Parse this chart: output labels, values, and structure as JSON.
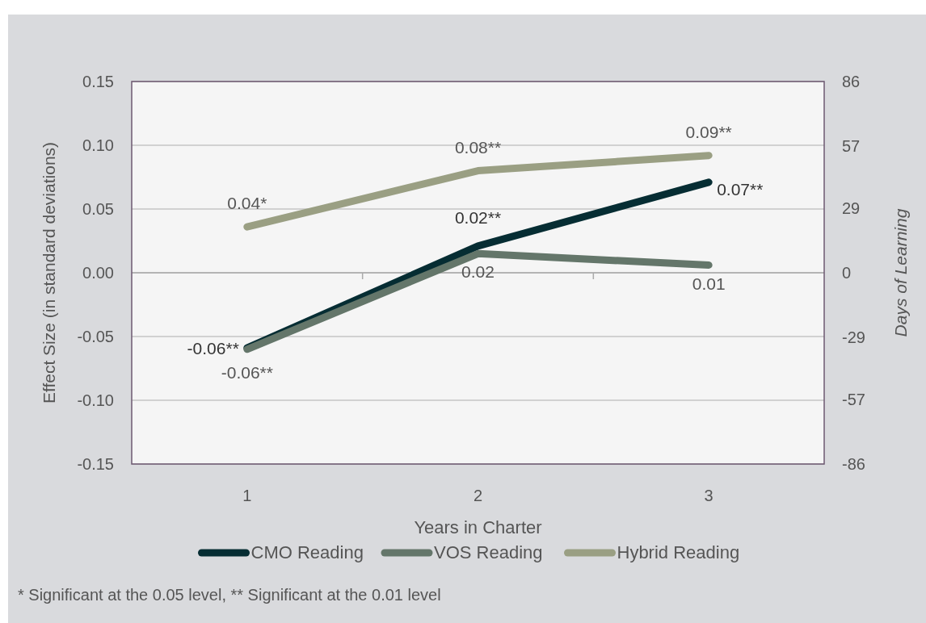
{
  "chart_data": {
    "type": "line",
    "xlabel": "Years in Charter",
    "ylabel": "Effect Size (in standard deviations)",
    "y2label": "Days of Learning",
    "categories": [
      "1",
      "2",
      "3"
    ],
    "series": [
      {
        "name": "CMO Reading",
        "color": "#062d33",
        "values": [
          -0.059,
          0.021,
          0.071
        ],
        "value_labels": [
          "-0.06**",
          "0.02**",
          "0.07**"
        ]
      },
      {
        "name": "VOS Reading",
        "color": "#64766a",
        "values": [
          -0.06,
          0.015,
          0.006
        ],
        "value_labels": [
          "-0.06**",
          "0.02",
          "0.01"
        ]
      },
      {
        "name": "Hybrid Reading",
        "color": "#9a9f83",
        "values": [
          0.036,
          0.08,
          0.092
        ],
        "value_labels": [
          "0.04*",
          "0.08**",
          "0.09**"
        ]
      }
    ],
    "ylim": [
      -0.15,
      0.15
    ],
    "yticks": [
      {
        "value": -0.15,
        "label": "-0.15"
      },
      {
        "value": -0.1,
        "label": "-0.10"
      },
      {
        "value": -0.05,
        "label": "-0.05"
      },
      {
        "value": 0,
        "label": "0.00"
      },
      {
        "value": 0.05,
        "label": "0.05"
      },
      {
        "value": 0.1,
        "label": "0.10"
      },
      {
        "value": 0.15,
        "label": "0.15"
      }
    ],
    "y2lim": [
      -86,
      86
    ],
    "y2ticks": [
      -86,
      -57,
      -29,
      0,
      29,
      57,
      86
    ],
    "grid": "y",
    "legend": "bottom",
    "marker": "none",
    "line_style": "solid",
    "annotations": [
      "* Significant at the 0.05 level, ** Significant at the 0.01 level"
    ]
  }
}
